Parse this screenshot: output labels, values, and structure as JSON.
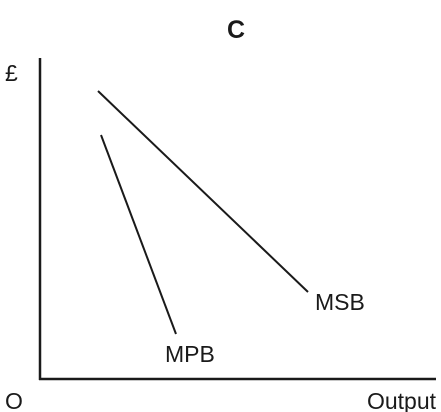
{
  "title": "C",
  "y_axis_label": "£",
  "origin_label": "O",
  "x_axis_label": "Output",
  "curves": [
    {
      "label": "MSB"
    },
    {
      "label": "MPB"
    }
  ]
}
